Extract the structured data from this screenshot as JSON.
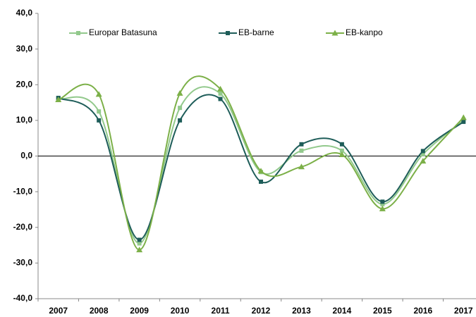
{
  "chart_data": {
    "type": "line",
    "categories": [
      "2007",
      "2008",
      "2009",
      "2010",
      "2011",
      "2012",
      "2013",
      "2014",
      "2015",
      "2016",
      "2017"
    ],
    "series": [
      {
        "name": "Europar Batasuna",
        "color": "#92c98c",
        "marker": "square",
        "values": [
          16.0,
          12.5,
          -24.5,
          13.5,
          17.5,
          -4.5,
          1.5,
          1.5,
          -13.5,
          0.5,
          10.0
        ]
      },
      {
        "name": "EB-barne",
        "color": "#1e5d59",
        "marker": "square",
        "values": [
          16.3,
          10.0,
          -23.5,
          10.0,
          16.0,
          -7.2,
          3.3,
          3.3,
          -12.8,
          1.4,
          9.6
        ]
      },
      {
        "name": "EB-kanpo",
        "color": "#7cb048",
        "marker": "triangle",
        "values": [
          15.8,
          17.3,
          -26.3,
          17.6,
          18.8,
          -4.2,
          -3.0,
          0.4,
          -14.8,
          -1.4,
          10.8
        ]
      }
    ],
    "ylim": [
      -40,
      40
    ],
    "yticks": [
      {
        "value": -40,
        "label": "-40,0"
      },
      {
        "value": -30,
        "label": "-30,0"
      },
      {
        "value": -20,
        "label": "-20,0"
      },
      {
        "value": -10,
        "label": "-10,0"
      },
      {
        "value": 0,
        "label": "0,0"
      },
      {
        "value": 10,
        "label": "10,0"
      },
      {
        "value": 20,
        "label": "20,0"
      },
      {
        "value": 30,
        "label": "30,0"
      },
      {
        "value": 40,
        "label": "40,0"
      }
    ],
    "grid": false,
    "smooth": true,
    "legend": "top"
  }
}
